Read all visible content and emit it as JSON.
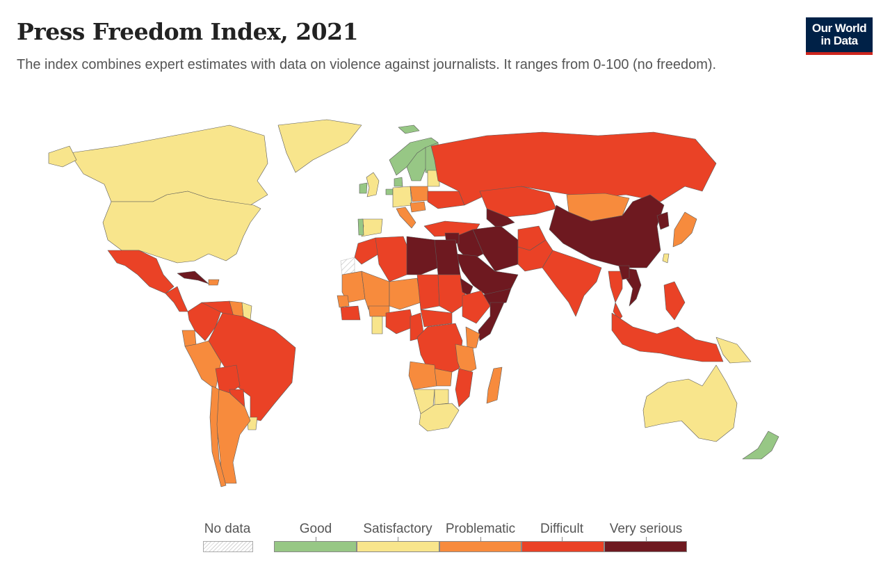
{
  "title": "Press Freedom Index, 2021",
  "subtitle": "The index combines expert estimates with data on violence against journalists. It ranges from 0-100 (no freedom).",
  "logo": {
    "line1": "Our World",
    "line2": "in Data"
  },
  "colors": {
    "good": "#97c785",
    "satisfactory": "#f8e58c",
    "problematic": "#f78b3d",
    "difficult": "#ea4226",
    "very_serious": "#6e1920",
    "no_data": "#e8e8e8",
    "border": "#5a5a5a"
  },
  "legend": {
    "no_data": "No data",
    "categories": [
      "Good",
      "Satisfactory",
      "Problematic",
      "Difficult",
      "Very serious"
    ]
  },
  "map_data": {
    "good": [
      "Norway",
      "Finland",
      "Sweden",
      "Denmark",
      "Netherlands",
      "Ireland",
      "Portugal",
      "Estonia",
      "Iceland",
      "New Zealand",
      "Costa Rica"
    ],
    "satisfactory": [
      "Canada",
      "United States",
      "Australia",
      "United Kingdom",
      "Germany",
      "Spain",
      "Latvia",
      "Lithuania",
      "Namibia",
      "South Africa",
      "Botswana",
      "Ghana",
      "Uruguay",
      "Suriname",
      "Papua New Guinea",
      "Taiwan",
      "Greenland"
    ],
    "problematic": [
      "Chile",
      "Argentina",
      "Peru",
      "Ecuador",
      "Poland",
      "Hungary",
      "Italy",
      "Mongolia",
      "Japan",
      "Madagascar",
      "Angola",
      "Mali",
      "Mauritania",
      "Senegal",
      "Niger",
      "Burkina Faso",
      "Kenya",
      "Tanzania",
      "Zambia",
      "Guyana",
      "Dominican Republic"
    ],
    "difficult": [
      "Russia",
      "Brazil",
      "Mexico",
      "Colombia",
      "Venezuela",
      "Bolivia",
      "Paraguay",
      "Algeria",
      "Morocco",
      "Nigeria",
      "Chad",
      "Sudan",
      "DR Congo",
      "Ethiopia",
      "Mozambique",
      "Turkey",
      "Kazakhstan",
      "India",
      "Pakistan",
      "Indonesia",
      "Thailand",
      "Malaysia",
      "Philippines",
      "Ukraine",
      "Central African Republic",
      "Cameroon",
      "Guatemala",
      "Honduras",
      "Zimbabwe",
      "Uganda",
      "Afghanistan",
      "Kyrgyzstan"
    ],
    "very_serious": [
      "China",
      "Saudi Arabia",
      "Iran",
      "Egypt",
      "Libya",
      "Somalia",
      "Vietnam",
      "Laos",
      "North Korea",
      "Cuba",
      "Syria",
      "Iraq",
      "Yemen",
      "Turkmenistan",
      "Uzbekistan",
      "Eritrea",
      "Djibouti"
    ],
    "no_data": [
      "Antarctica",
      "Western Sahara",
      "Svalbard"
    ]
  }
}
